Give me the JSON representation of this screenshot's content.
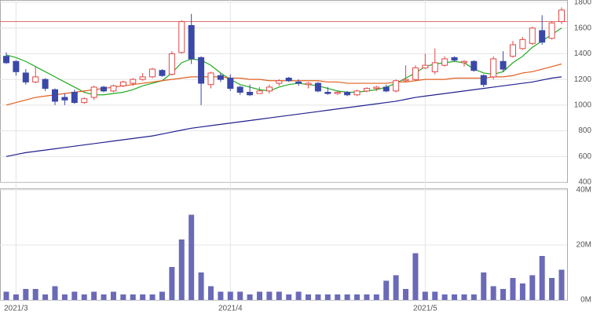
{
  "chart_data": [
    {
      "type": "candlestick",
      "categories": [
        null,
        "2021/3",
        null,
        null,
        null,
        null,
        null,
        null,
        null,
        null,
        null,
        null,
        null,
        null,
        null,
        null,
        null,
        null,
        null,
        null,
        null,
        null,
        null,
        "2021/4",
        null,
        null,
        null,
        null,
        null,
        null,
        null,
        null,
        null,
        null,
        null,
        null,
        null,
        null,
        null,
        null,
        null,
        null,
        null,
        "2021/5",
        null,
        null,
        null,
        null,
        null,
        null,
        null,
        null,
        null,
        null,
        null,
        null,
        null,
        null
      ],
      "open": [
        1380,
        1340,
        1250,
        1180,
        1200,
        1120,
        1060,
        1100,
        1020,
        1060,
        1140,
        1110,
        1150,
        1170,
        1200,
        1220,
        1270,
        1240,
        1410,
        1620,
        1370,
        1160,
        1230,
        1210,
        1140,
        1100,
        1090,
        1110,
        1170,
        1210,
        1180,
        1160,
        1170,
        1100,
        1090,
        1100,
        1080,
        1110,
        1130,
        1140,
        1110,
        1190,
        1200,
        1290,
        1260,
        1310,
        1370,
        1330,
        1340,
        1230,
        1220,
        1340,
        1380,
        1440,
        1480,
        1580,
        1520,
        1650
      ],
      "high": [
        1410,
        1350,
        1280,
        1300,
        1210,
        1130,
        1090,
        1120,
        1060,
        1150,
        1150,
        1160,
        1190,
        1210,
        1250,
        1290,
        1280,
        1420,
        1660,
        1710,
        1380,
        1260,
        1250,
        1240,
        1150,
        1160,
        1140,
        1160,
        1200,
        1220,
        1200,
        1180,
        1180,
        1140,
        1110,
        1110,
        1120,
        1140,
        1150,
        1160,
        1200,
        1310,
        1310,
        1400,
        1440,
        1380,
        1380,
        1350,
        1350,
        1240,
        1380,
        1420,
        1500,
        1530,
        1610,
        1700,
        1650,
        1760
      ],
      "low": [
        1320,
        1230,
        1160,
        1170,
        1110,
        1000,
        1000,
        1010,
        1010,
        1040,
        1100,
        1100,
        1140,
        1150,
        1190,
        1210,
        1220,
        1230,
        1400,
        1320,
        1000,
        1130,
        1180,
        1110,
        1080,
        1070,
        1090,
        1090,
        1150,
        1180,
        1150,
        1130,
        1100,
        1080,
        1080,
        1070,
        1070,
        1100,
        1110,
        1100,
        1100,
        1180,
        1190,
        1280,
        1240,
        1300,
        1340,
        1300,
        1260,
        1140,
        1200,
        1260,
        1370,
        1430,
        1470,
        1470,
        1510,
        1630
      ],
      "close": [
        1330,
        1260,
        1180,
        1220,
        1130,
        1030,
        1040,
        1020,
        1050,
        1140,
        1110,
        1150,
        1180,
        1200,
        1220,
        1280,
        1230,
        1400,
        1650,
        1360,
        1170,
        1250,
        1200,
        1130,
        1100,
        1080,
        1110,
        1140,
        1190,
        1190,
        1170,
        1170,
        1110,
        1090,
        1100,
        1080,
        1110,
        1130,
        1140,
        1110,
        1190,
        1200,
        1290,
        1310,
        1330,
        1360,
        1350,
        1340,
        1270,
        1160,
        1360,
        1280,
        1470,
        1510,
        1600,
        1490,
        1640,
        1740
      ],
      "up_color": "#e04848",
      "down_color": "#3a48a8",
      "series": [
        {
          "color": "#22aa22",
          "values": [
            1390,
            1370,
            1340,
            1300,
            1260,
            1220,
            1180,
            1140,
            1100,
            1080,
            1080,
            1090,
            1100,
            1120,
            1150,
            1170,
            1190,
            1250,
            1330,
            1360,
            1350,
            1310,
            1250,
            1200,
            1160,
            1140,
            1120,
            1110,
            1140,
            1160,
            1170,
            1160,
            1150,
            1130,
            1110,
            1100,
            1100,
            1110,
            1120,
            1140,
            1170,
            1210,
            1250,
            1300,
            1320,
            1330,
            1340,
            1330,
            1280,
            1250,
            1240,
            1260,
            1330,
            1380,
            1450,
            1500,
            1550,
            1600
          ]
        },
        {
          "color": "#e06020",
          "values": [
            1000,
            1020,
            1040,
            1060,
            1070,
            1080,
            1090,
            1100,
            1110,
            1120,
            1130,
            1140,
            1150,
            1160,
            1170,
            1180,
            1190,
            1200,
            1210,
            1220,
            1220,
            1220,
            1220,
            1210,
            1210,
            1200,
            1200,
            1190,
            1190,
            1190,
            1190,
            1190,
            1190,
            1180,
            1180,
            1170,
            1170,
            1170,
            1170,
            1170,
            1180,
            1180,
            1190,
            1200,
            1200,
            1200,
            1210,
            1210,
            1210,
            1210,
            1220,
            1220,
            1230,
            1250,
            1260,
            1280,
            1300,
            1320
          ]
        },
        {
          "color": "#202090",
          "values": [
            600,
            615,
            630,
            640,
            650,
            660,
            670,
            680,
            690,
            700,
            710,
            720,
            730,
            740,
            750,
            760,
            775,
            790,
            805,
            820,
            830,
            840,
            850,
            860,
            870,
            880,
            890,
            900,
            910,
            920,
            930,
            940,
            950,
            960,
            970,
            980,
            990,
            1000,
            1010,
            1020,
            1030,
            1045,
            1060,
            1070,
            1080,
            1090,
            1100,
            1110,
            1120,
            1130,
            1140,
            1150,
            1160,
            1170,
            1180,
            1195,
            1210,
            1220
          ]
        }
      ],
      "hline": 1650,
      "hline_color": "#e07070",
      "ylim": [
        400,
        1800
      ],
      "yticks": [
        400,
        600,
        800,
        1000,
        1200,
        1400,
        1600,
        1800
      ],
      "grid": true
    },
    {
      "type": "bar",
      "color": "#6a6ab8",
      "values": [
        3,
        2,
        4,
        4,
        2,
        5,
        2,
        3,
        2,
        3,
        2,
        3,
        2,
        2,
        2,
        2,
        3,
        12,
        22,
        31,
        10,
        5,
        3,
        3,
        3,
        2,
        3,
        3,
        3,
        2,
        3,
        2,
        2,
        2,
        2,
        2,
        2,
        2,
        2,
        7,
        9,
        4,
        17,
        3,
        3,
        2,
        2,
        2,
        2,
        10,
        5,
        4,
        8,
        6,
        9,
        16,
        8,
        11
      ],
      "ylim": [
        0,
        40
      ],
      "yticks": [
        {
          "value": 0,
          "label": "0M"
        },
        {
          "value": 20,
          "label": "20M"
        },
        {
          "value": 40,
          "label": "40M"
        }
      ],
      "grid": true
    }
  ]
}
